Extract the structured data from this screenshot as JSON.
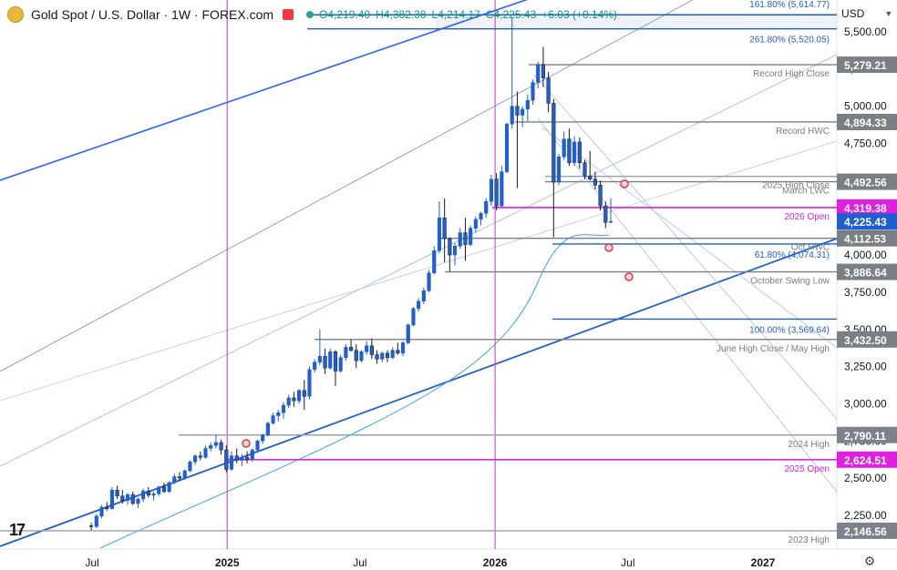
{
  "header": {
    "title": "Gold Spot / U.S. Dollar · 1W · FOREX.com",
    "open": "O4,219.40",
    "high": "H4,382.38",
    "low": "L4,214.17",
    "close": "C4,225.43",
    "change": "+6.03 (+0.14%)"
  },
  "currency": "USD",
  "chart_data": {
    "type": "candlestick",
    "instrument": "Gold Spot / U.S. Dollar",
    "timeframe": "1W",
    "y_axis": {
      "ticks": [
        "5,500.00",
        "5,250.00",
        "5,000.00",
        "4,750.00",
        "4,500.00",
        "4,250.00",
        "4,000.00",
        "3,750.00",
        "3,500.00",
        "3,250.00",
        "3,000.00",
        "2,750.00",
        "2,500.00",
        "2,250.00"
      ],
      "tick_values": [
        5500,
        5250,
        5000,
        4750,
        4500,
        4250,
        4000,
        3750,
        3500,
        3250,
        3000,
        2750,
        2500,
        2250
      ]
    },
    "x_axis": {
      "ticks": [
        "Jul",
        "2025",
        "Jul",
        "2026",
        "Jul",
        "2027"
      ],
      "tick_dates": [
        "2024-07-01",
        "2025-01-01",
        "2025-07-01",
        "2026-01-01",
        "2026-07-01",
        "2027-01-01"
      ],
      "bold_ticks": [
        "2025",
        "2026",
        "2027"
      ]
    },
    "vertical_markers": [
      "2025-01-01",
      "2026-01-01"
    ],
    "levels": [
      {
        "name": "161.80% (5,614.77)",
        "value": 5614.77,
        "color": "#1f5fd1",
        "price_label": ""
      },
      {
        "name": "261.80% (5,520.05)",
        "value": 5520.05,
        "color": "#1f5fd1",
        "price_label": ""
      },
      {
        "name": "Record High Close",
        "value": 5279.21,
        "color": "#7a7e85",
        "price_label": "5,279.21"
      },
      {
        "name": "Record HWC",
        "value": 4894.33,
        "color": "#7a7e85",
        "price_label": "4,894.33"
      },
      {
        "name": "2025 High Close",
        "value": 4529.0,
        "color": "#9aa0a8",
        "price_label": ""
      },
      {
        "name": "March LWC",
        "value": 4492.56,
        "color": "#7a7e85",
        "price_label": "4,492.56"
      },
      {
        "name": "2026 Open",
        "value": 4319.38,
        "color": "#e020e0",
        "price_label": "4,319.38"
      },
      {
        "name": "Oct HWC",
        "value": 4112.53,
        "color": "#7a7e85",
        "price_label": "4,112.53"
      },
      {
        "name": "61.80% (4,074.31)",
        "value": 4074.31,
        "color": "#1f5fd1",
        "price_label": ""
      },
      {
        "name": "October Swing Low",
        "value": 3886.64,
        "color": "#7a7e85",
        "price_label": "3,886.64"
      },
      {
        "name": "100.00% (3,569.64)",
        "value": 3569.64,
        "color": "#1f5fd1",
        "price_label": ""
      },
      {
        "name": "June High Close / May High",
        "value": 3432.5,
        "color": "#7a7e85",
        "price_label": "3,432.50"
      },
      {
        "name": "2024 High",
        "value": 2790.11,
        "color": "#9aa0a8",
        "price_label": "2,790.11"
      },
      {
        "name": "2025 Open",
        "value": 2624.51,
        "color": "#e020e0",
        "price_label": "2,624.51"
      },
      {
        "name": "2023 High",
        "value": 2146.56,
        "color": "#9aa0a8",
        "price_label": "2,146.56"
      }
    ],
    "last_price": {
      "value": 4225.43,
      "label": "4,225.43",
      "color": "#1f5fd1"
    },
    "candles": [
      [
        2180,
        2200,
        2150,
        2175
      ],
      [
        2175,
        2260,
        2165,
        2245
      ],
      [
        2245,
        2320,
        2230,
        2305
      ],
      [
        2305,
        2340,
        2280,
        2295
      ],
      [
        2295,
        2440,
        2290,
        2420
      ],
      [
        2420,
        2450,
        2360,
        2380
      ],
      [
        2380,
        2420,
        2330,
        2350
      ],
      [
        2350,
        2400,
        2320,
        2390
      ],
      [
        2390,
        2410,
        2320,
        2330
      ],
      [
        2330,
        2370,
        2300,
        2360
      ],
      [
        2360,
        2430,
        2340,
        2415
      ],
      [
        2415,
        2440,
        2370,
        2385
      ],
      [
        2385,
        2410,
        2350,
        2395
      ],
      [
        2395,
        2450,
        2380,
        2440
      ],
      [
        2440,
        2470,
        2400,
        2410
      ],
      [
        2410,
        2480,
        2400,
        2470
      ],
      [
        2470,
        2530,
        2460,
        2510
      ],
      [
        2510,
        2540,
        2480,
        2500
      ],
      [
        2500,
        2560,
        2490,
        2550
      ],
      [
        2550,
        2620,
        2540,
        2610
      ],
      [
        2610,
        2660,
        2590,
        2650
      ],
      [
        2650,
        2680,
        2620,
        2640
      ],
      [
        2640,
        2720,
        2630,
        2700
      ],
      [
        2700,
        2740,
        2680,
        2720
      ],
      [
        2720,
        2790,
        2700,
        2740
      ],
      [
        2740,
        2760,
        2660,
        2690
      ],
      [
        2690,
        2720,
        2540,
        2560
      ],
      [
        2560,
        2680,
        2550,
        2650
      ],
      [
        2650,
        2700,
        2600,
        2620
      ],
      [
        2620,
        2660,
        2580,
        2640
      ],
      [
        2640,
        2680,
        2600,
        2625
      ],
      [
        2625,
        2700,
        2610,
        2690
      ],
      [
        2690,
        2760,
        2680,
        2750
      ],
      [
        2750,
        2800,
        2730,
        2790
      ],
      [
        2790,
        2880,
        2780,
        2870
      ],
      [
        2870,
        2940,
        2860,
        2920
      ],
      [
        2920,
        2960,
        2880,
        2940
      ],
      [
        2940,
        3010,
        2900,
        2990
      ],
      [
        2990,
        3060,
        2970,
        3040
      ],
      [
        3040,
        3080,
        2980,
        3020
      ],
      [
        3020,
        3100,
        3000,
        3090
      ],
      [
        3090,
        3160,
        2960,
        3050
      ],
      [
        3050,
        3250,
        3030,
        3230
      ],
      [
        3230,
        3300,
        3210,
        3280
      ],
      [
        3280,
        3500,
        3260,
        3320
      ],
      [
        3320,
        3370,
        3200,
        3240
      ],
      [
        3240,
        3370,
        3230,
        3350
      ],
      [
        3350,
        3360,
        3120,
        3220
      ],
      [
        3220,
        3330,
        3210,
        3310
      ],
      [
        3310,
        3400,
        3290,
        3380
      ],
      [
        3380,
        3430,
        3350,
        3360
      ],
      [
        3360,
        3400,
        3240,
        3290
      ],
      [
        3290,
        3360,
        3280,
        3350
      ],
      [
        3350,
        3420,
        3330,
        3390
      ],
      [
        3390,
        3440,
        3300,
        3330
      ],
      [
        3330,
        3360,
        3270,
        3300
      ],
      [
        3300,
        3350,
        3280,
        3340
      ],
      [
        3340,
        3360,
        3280,
        3310
      ],
      [
        3310,
        3380,
        3300,
        3360
      ],
      [
        3360,
        3410,
        3330,
        3340
      ],
      [
        3340,
        3420,
        3320,
        3410
      ],
      [
        3410,
        3540,
        3400,
        3530
      ],
      [
        3530,
        3650,
        3520,
        3640
      ],
      [
        3640,
        3710,
        3620,
        3690
      ],
      [
        3690,
        3780,
        3670,
        3760
      ],
      [
        3760,
        3900,
        3750,
        3880
      ],
      [
        3880,
        4060,
        3870,
        4030
      ],
      [
        4030,
        4360,
        4010,
        4250
      ],
      [
        4250,
        4380,
        3950,
        4110
      ],
      [
        4110,
        4120,
        3890,
        4000
      ],
      [
        4000,
        4080,
        3930,
        4060
      ],
      [
        4060,
        4180,
        4040,
        4150
      ],
      [
        4150,
        4250,
        3960,
        4070
      ],
      [
        4070,
        4200,
        4060,
        4180
      ],
      [
        4180,
        4260,
        4150,
        4240
      ],
      [
        4240,
        4290,
        4200,
        4280
      ],
      [
        4280,
        4380,
        4250,
        4360
      ],
      [
        4360,
        4540,
        4330,
        4510
      ],
      [
        4510,
        4550,
        4300,
        4330
      ],
      [
        4330,
        4600,
        4320,
        4560
      ],
      [
        4560,
        4890,
        4550,
        4880
      ],
      [
        4880,
        5600,
        4850,
        5000
      ],
      [
        5000,
        5100,
        4450,
        4940
      ],
      [
        4940,
        5000,
        4860,
        4980
      ],
      [
        4980,
        5080,
        4900,
        5040
      ],
      [
        5040,
        5180,
        5010,
        5160
      ],
      [
        5160,
        5300,
        5120,
        5280
      ],
      [
        5280,
        5400,
        5130,
        5190
      ],
      [
        5190,
        5230,
        4960,
        5020
      ],
      [
        5020,
        5050,
        4120,
        4490
      ],
      [
        4490,
        4680,
        4470,
        4660
      ],
      [
        4660,
        4830,
        4640,
        4780
      ],
      [
        4780,
        4850,
        4600,
        4620
      ],
      [
        4620,
        4800,
        4600,
        4760
      ],
      [
        4760,
        4790,
        4580,
        4620
      ],
      [
        4620,
        4640,
        4510,
        4530
      ],
      [
        4530,
        4700,
        4500,
        4510
      ],
      [
        4510,
        4560,
        4440,
        4470
      ],
      [
        4470,
        4500,
        4300,
        4330
      ],
      [
        4330,
        4360,
        4180,
        4220
      ],
      [
        4219.4,
        4382.38,
        4214.17,
        4225.43
      ]
    ]
  }
}
